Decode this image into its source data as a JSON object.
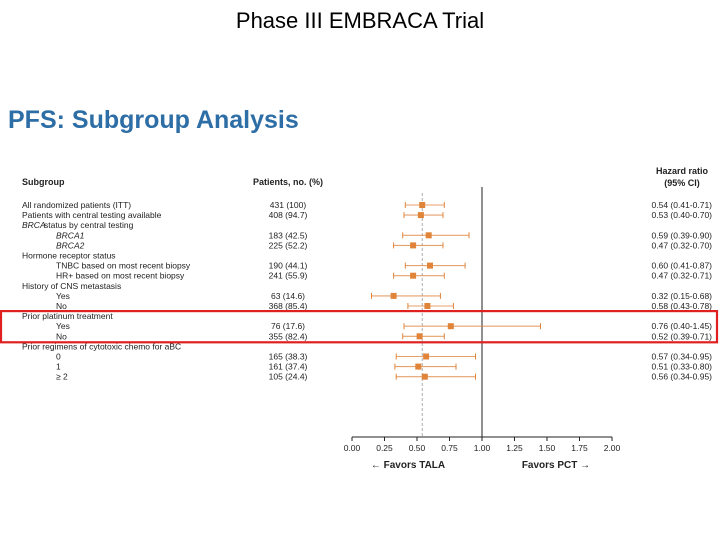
{
  "slide_title": "Phase III EMBRACA Trial",
  "chart_title": "PFS: Subgroup Analysis",
  "highlight_color": "#e02020",
  "point_color": "#e0843a",
  "chart_data": {
    "type": "forest",
    "title": "PFS: Subgroup Analysis",
    "header_subgroup": "Subgroup",
    "header_patients": "Patients, no. (%)",
    "header_hr_line1": "Hazard ratio",
    "header_hr_line2": "(95% CI)",
    "xlim": [
      0.0,
      2.0
    ],
    "xticks": [
      "0.00",
      "0.25",
      "0.50",
      "0.75",
      "1.00",
      "1.25",
      "1.50",
      "1.75",
      "2.00"
    ],
    "reference_line": 1.0,
    "overall_line": 0.54,
    "favors_left": "← Favors TALA",
    "favors_right": "Favors PCT →",
    "rows": [
      {
        "label": "All randomized patients (ITT)",
        "indent": 0,
        "italic": false,
        "patients": "431 (100)",
        "hr": 0.54,
        "lo": 0.41,
        "hi": 0.71,
        "ci_text": "0.54 (0.41-0.71)"
      },
      {
        "label": "Patients with central testing available",
        "indent": 0,
        "italic": false,
        "patients": "408 (94.7)",
        "hr": 0.53,
        "lo": 0.4,
        "hi": 0.7,
        "ci_text": "0.53 (0.40-0.70)"
      },
      {
        "label": "BRCA",
        "label_suffix": "   status by central testing",
        "indent": 0,
        "italic": true,
        "header": true
      },
      {
        "label": "BRCA1",
        "indent": 1,
        "italic": true,
        "patients": "183 (42.5)",
        "hr": 0.59,
        "lo": 0.39,
        "hi": 0.9,
        "ci_text": "0.59 (0.39-0.90)"
      },
      {
        "label": "BRCA2",
        "indent": 1,
        "italic": true,
        "patients": "225 (52.2)",
        "hr": 0.47,
        "lo": 0.32,
        "hi": 0.7,
        "ci_text": "0.47 (0.32-0.70)"
      },
      {
        "label": "Hormone receptor status",
        "indent": 0,
        "italic": false,
        "header": true
      },
      {
        "label": "TNBC based on most recent biopsy",
        "indent": 1,
        "italic": false,
        "patients": "190 (44.1)",
        "hr": 0.6,
        "lo": 0.41,
        "hi": 0.87,
        "ci_text": "0.60 (0.41-0.87)"
      },
      {
        "label": "HR+ based on most recent biopsy",
        "indent": 1,
        "italic": false,
        "patients": "241 (55.9)",
        "hr": 0.47,
        "lo": 0.32,
        "hi": 0.71,
        "ci_text": "0.47 (0.32-0.71)"
      },
      {
        "label": "History of CNS metastasis",
        "indent": 0,
        "italic": false,
        "header": true
      },
      {
        "label": "Yes",
        "indent": 1,
        "italic": false,
        "patients": "63 (14.6)",
        "hr": 0.32,
        "lo": 0.15,
        "hi": 0.68,
        "ci_text": "0.32 (0.15-0.68)"
      },
      {
        "label": "No",
        "indent": 1,
        "italic": false,
        "patients": "368 (85.4)",
        "hr": 0.58,
        "lo": 0.43,
        "hi": 0.78,
        "ci_text": "0.58 (0.43-0.78)"
      },
      {
        "label": "Prior platinum treatment",
        "indent": 0,
        "italic": false,
        "header": true
      },
      {
        "label": "Yes",
        "indent": 1,
        "italic": false,
        "patients": "76 (17.6)",
        "hr": 0.76,
        "lo": 0.4,
        "hi": 1.45,
        "ci_text": "0.76 (0.40-1.45)"
      },
      {
        "label": "No",
        "indent": 1,
        "italic": false,
        "patients": "355 (82.4)",
        "hr": 0.52,
        "lo": 0.39,
        "hi": 0.71,
        "ci_text": "0.52 (0.39-0.71)"
      },
      {
        "label": "Prior regimens of cytotoxic chemo for aBC",
        "indent": 0,
        "italic": false,
        "header": true
      },
      {
        "label": "0",
        "indent": 1,
        "italic": false,
        "patients": "165 (38.3)",
        "hr": 0.57,
        "lo": 0.34,
        "hi": 0.95,
        "ci_text": "0.57 (0.34-0.95)"
      },
      {
        "label": "1",
        "indent": 1,
        "italic": false,
        "patients": "161 (37.4)",
        "hr": 0.51,
        "lo": 0.33,
        "hi": 0.8,
        "ci_text": "0.51 (0.33-0.80)"
      },
      {
        "label": "≥ 2",
        "indent": 1,
        "italic": false,
        "patients": "105 (24.4)",
        "hr": 0.56,
        "lo": 0.34,
        "hi": 0.95,
        "ci_text": "0.56 (0.34-0.95)"
      }
    ],
    "highlighted_group": "Prior platinum treatment"
  }
}
